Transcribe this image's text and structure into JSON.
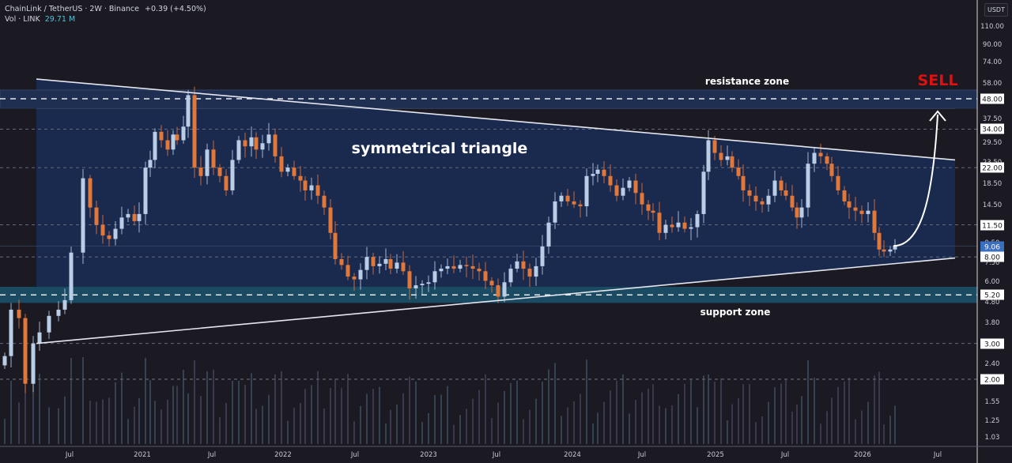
{
  "header": {
    "symbol": "ChainLink / TetherUS · 2W · Binance",
    "change": "+0.39 (+4.50%)",
    "volume_label": "Vol · LINK",
    "volume_value": "29.71 M",
    "currency": "USDT"
  },
  "annotations": {
    "pattern_label": "symmetrical triangle",
    "resistance_label": "resistance zone",
    "support_label": "support zone",
    "signal_label": "SELL"
  },
  "colors": {
    "background": "#1b1a23",
    "up_candle": "#b9cde6",
    "down_candle": "#e2773a",
    "triangle_fill": "#1a2a4f",
    "resistance_zone": "#1f2f52",
    "support_zone": "#1b4a63",
    "sell": "#e01010",
    "current_price": "#3b6fc0"
  },
  "price_axis": {
    "labels": [
      "110.00",
      "90.00",
      "74.00",
      "58.00",
      "48.00",
      "37.50",
      "34.00",
      "29.50",
      "23.50",
      "22.00",
      "18.50",
      "14.50",
      "11.50",
      "9.50",
      "9.06",
      "8.00",
      "7.50",
      "6.00",
      "5.20",
      "4.80",
      "3.80",
      "3.00",
      "2.40",
      "2.00",
      "1.55",
      "1.25",
      "1.03"
    ],
    "highlighted": [
      "48.00",
      "34.00",
      "22.00",
      "11.50",
      "8.00",
      "5.20",
      "3.00",
      "2.00"
    ],
    "current_price": "9.06"
  },
  "time_axis": {
    "labels": [
      "Jul",
      "2021",
      "Jul",
      "2022",
      "Jul",
      "2023",
      "Jul",
      "2024",
      "Jul",
      "2025",
      "Jul",
      "2026",
      "Jul"
    ]
  },
  "chart_data": {
    "type": "candlestick",
    "title": "ChainLink / TetherUS · 2W · Binance",
    "scale": "log",
    "ylabel": "USDT",
    "ylim": [
      1.0,
      115
    ],
    "x_range": [
      "2020-03",
      "2026-08"
    ],
    "horizontal_levels": [
      48.0,
      34.0,
      22.0,
      11.5,
      8.0,
      5.2,
      3.0,
      2.0
    ],
    "resistance_zone": [
      43.0,
      53.0
    ],
    "support_zone": [
      4.75,
      5.7
    ],
    "triangle": {
      "upper_line": [
        {
          "date": "2020-08",
          "price": 60.0
        },
        {
          "date": "2026-05",
          "price": 24.0
        }
      ],
      "lower_line": [
        {
          "date": "2020-08",
          "price": 3.0
        },
        {
          "date": "2026-05",
          "price": 7.9
        }
      ]
    },
    "projection": {
      "from": 9.06,
      "to": 48.0,
      "label": "SELL"
    },
    "candles_approx": [
      {
        "t": "2020-03",
        "o": 2.0,
        "h": 3.0,
        "l": 1.7,
        "c": 2.6
      },
      {
        "t": "2020-04",
        "o": 2.6,
        "h": 4.6,
        "l": 2.4,
        "c": 4.4
      },
      {
        "t": "2020-05",
        "o": 4.4,
        "h": 4.8,
        "l": 3.7,
        "c": 4.0
      },
      {
        "t": "2020-05b",
        "o": 4.0,
        "h": 4.6,
        "l": 1.7,
        "c": 2.0
      },
      {
        "t": "2020-06",
        "o": 2.0,
        "h": 2.3,
        "l": 1.7,
        "c": 1.9
      },
      {
        "t": "2020-06b",
        "o": 1.9,
        "h": 3.2,
        "l": 1.8,
        "c": 3.0
      },
      {
        "t": "2020-07",
        "o": 3.0,
        "h": 3.6,
        "l": 2.8,
        "c": 3.4
      },
      {
        "t": "2020-07b",
        "o": 3.4,
        "h": 5.0,
        "l": 3.3,
        "c": 4.8
      },
      {
        "t": "2020-08",
        "o": 4.8,
        "h": 8.5,
        "l": 4.5,
        "c": 8.2
      },
      {
        "t": "2020-08b",
        "o": 8.2,
        "h": 20.0,
        "l": 8.0,
        "c": 19.5
      },
      {
        "t": "2021-05",
        "o": 35.0,
        "h": 52.0,
        "l": 30.0,
        "c": 50.0
      },
      {
        "t": "2022-06",
        "o": 8.5,
        "h": 9.0,
        "l": 5.3,
        "c": 6.2
      },
      {
        "t": "2023-06",
        "o": 6.0,
        "h": 6.3,
        "l": 4.9,
        "c": 5.1
      },
      {
        "t": "2024-03",
        "o": 17.0,
        "h": 22.5,
        "l": 16.5,
        "c": 20.0
      },
      {
        "t": "2024-12",
        "o": 19.0,
        "h": 30.0,
        "l": 18.5,
        "c": 29.5
      },
      {
        "t": "2025-08",
        "o": 19.0,
        "h": 27.0,
        "l": 18.0,
        "c": 25.5
      },
      {
        "t": "2026-02",
        "o": 8.7,
        "h": 9.5,
        "l": 8.2,
        "c": 9.06
      }
    ],
    "volume": {
      "label": "Vol · LINK",
      "last": "29.71M"
    }
  }
}
